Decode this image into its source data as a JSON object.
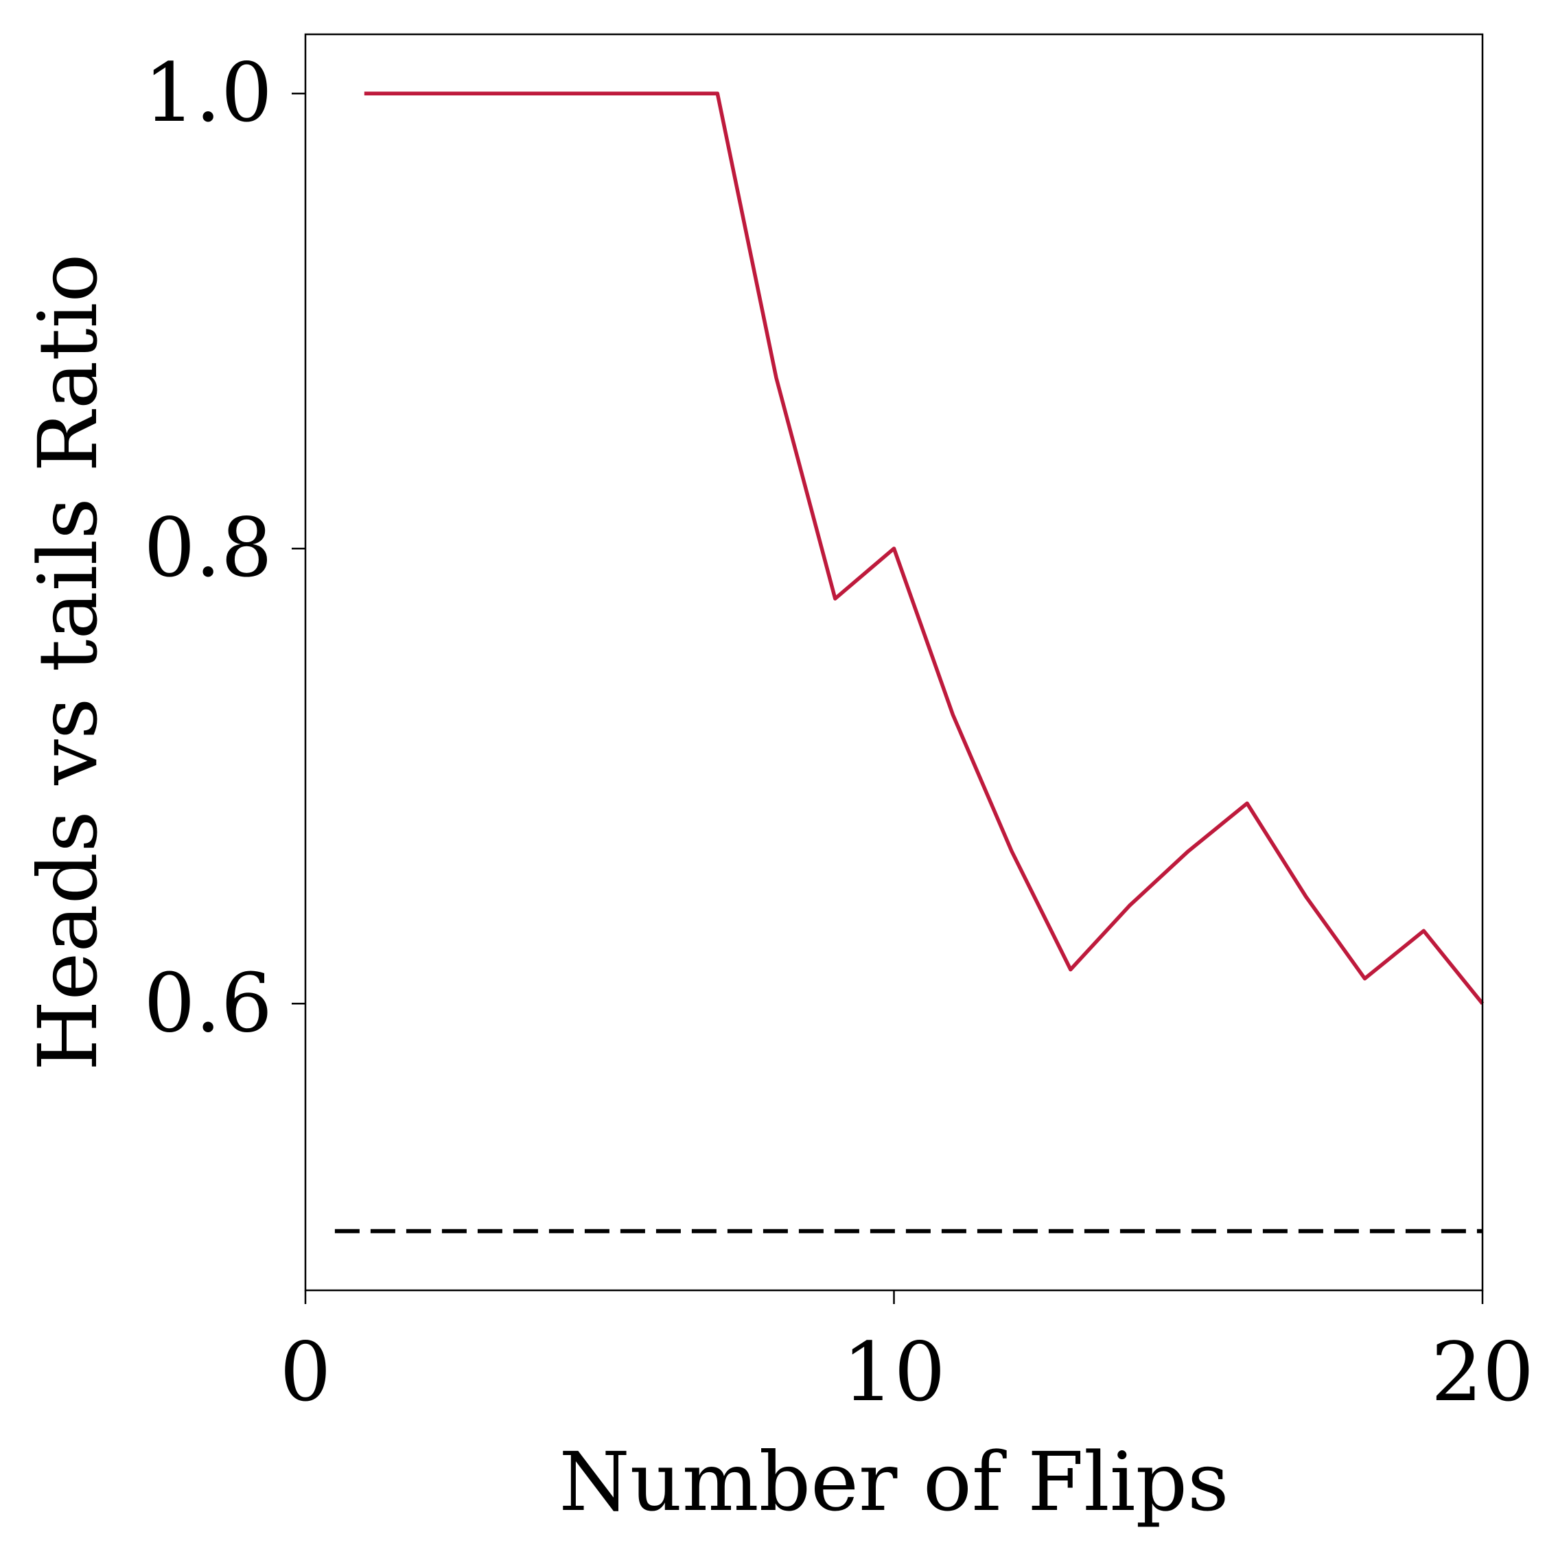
{
  "chart_data": {
    "type": "line",
    "xlabel": "Number of Flips",
    "ylabel": "Heads vs tails Ratio",
    "xlim": [
      0,
      20
    ],
    "ylim": [
      0.474,
      1.026
    ],
    "xticks": [
      0,
      10,
      20
    ],
    "xtick_labels": [
      "0",
      "10",
      "20"
    ],
    "yticks": [
      0.6,
      0.8,
      1.0
    ],
    "ytick_labels": [
      "0.6",
      "0.8",
      "1.0"
    ],
    "grid": false,
    "series": [
      {
        "color": "#be1a3c",
        "style": "solid",
        "x": [
          1,
          2,
          3,
          4,
          5,
          6,
          7,
          8,
          9,
          10,
          11,
          12,
          13,
          14,
          15,
          16,
          17,
          18,
          19,
          20
        ],
        "y": [
          1.0,
          1.0,
          1.0,
          1.0,
          1.0,
          1.0,
          1.0,
          0.875,
          0.778,
          0.8,
          0.727,
          0.667,
          0.615,
          0.643,
          0.667,
          0.688,
          0.647,
          0.611,
          0.632,
          0.6
        ]
      },
      {
        "color": "#000000",
        "style": "dashed",
        "x": [
          0.5,
          20
        ],
        "y": [
          0.5,
          0.5
        ]
      }
    ]
  }
}
